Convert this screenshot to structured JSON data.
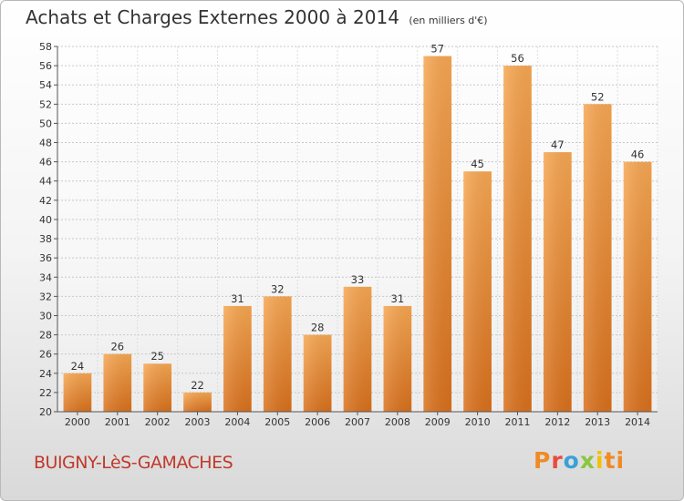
{
  "chart_data": {
    "type": "bar",
    "title": "Achats et Charges Externes 2000 à 2014",
    "subtitle": "(en milliers d'€)",
    "categories": [
      "2000",
      "2001",
      "2002",
      "2003",
      "2004",
      "2005",
      "2006",
      "2007",
      "2008",
      "2009",
      "2010",
      "2011",
      "2012",
      "2013",
      "2014"
    ],
    "values": [
      24,
      26,
      25,
      22,
      31,
      32,
      28,
      33,
      31,
      57,
      45,
      56,
      47,
      52,
      46
    ],
    "ylim": [
      20,
      58
    ],
    "yticks": [
      20,
      22,
      24,
      26,
      28,
      30,
      32,
      34,
      36,
      38,
      40,
      42,
      44,
      46,
      48,
      50,
      52,
      54,
      56,
      58
    ],
    "grid": true,
    "bar_color": "#f39c45"
  },
  "footer": {
    "commune": "BUIGNY-LèS-GAMACHES",
    "logo_letters": [
      "P",
      "r",
      "o",
      "x",
      "i",
      "ti"
    ]
  }
}
